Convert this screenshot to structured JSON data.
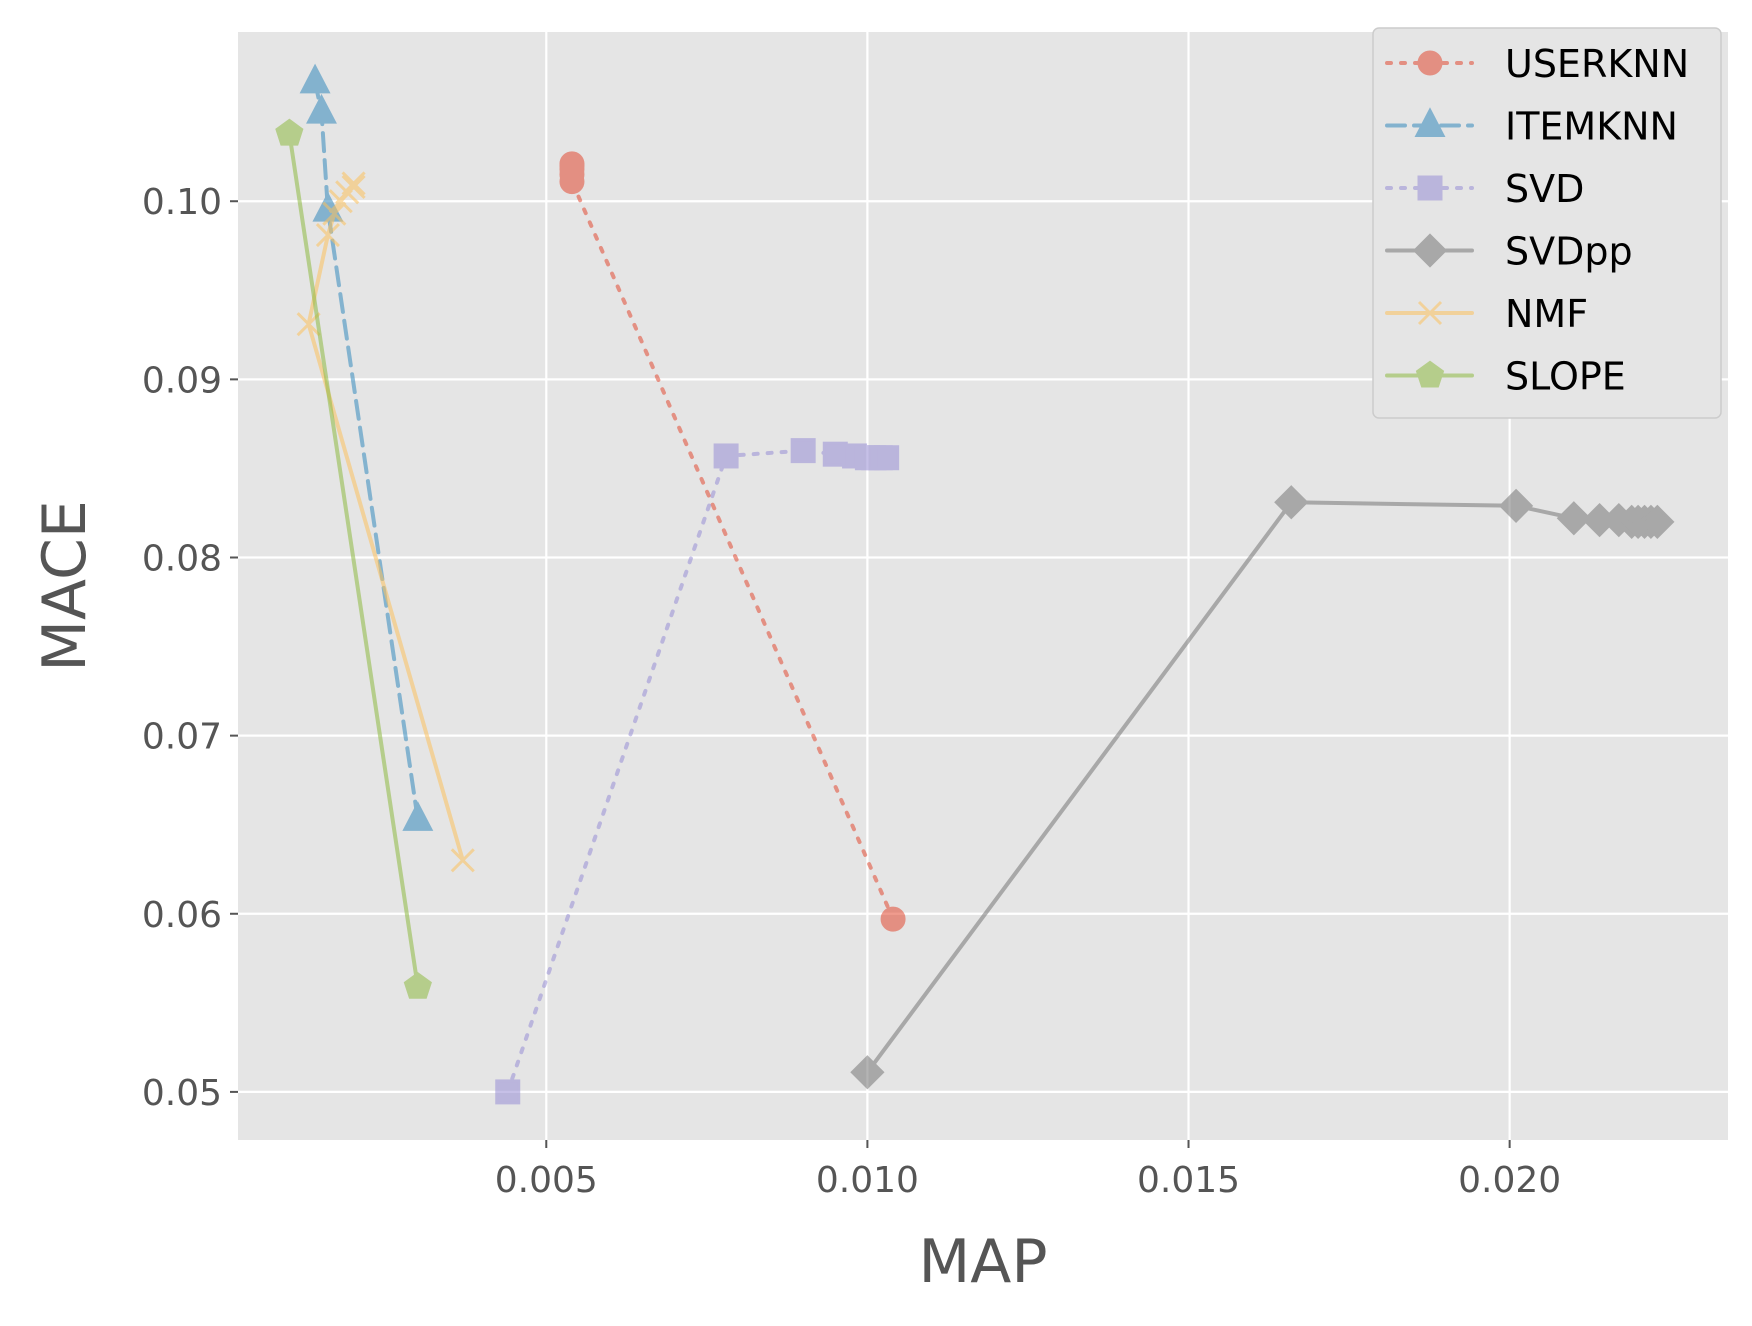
{
  "chart_data": {
    "type": "line",
    "title": "",
    "xlabel": "MAP",
    "ylabel": "MACE",
    "xlim": [
      0.0002,
      0.0234
    ],
    "ylim": [
      0.0473,
      0.1095
    ],
    "x_ticks": [
      {
        "value": 0.005,
        "label": "0.005"
      },
      {
        "value": 0.01,
        "label": "0.010"
      },
      {
        "value": 0.015,
        "label": "0.015"
      },
      {
        "value": 0.02,
        "label": "0.020"
      }
    ],
    "y_ticks": [
      {
        "value": 0.05,
        "label": "0.05"
      },
      {
        "value": 0.06,
        "label": "0.06"
      },
      {
        "value": 0.07,
        "label": "0.07"
      },
      {
        "value": 0.08,
        "label": "0.08"
      },
      {
        "value": 0.09,
        "label": "0.09"
      },
      {
        "value": 0.1,
        "label": "0.10"
      }
    ],
    "grid": true,
    "legend_position": "top-right",
    "series": [
      {
        "name": "USERKNN",
        "color": "#E24A33",
        "line_style": "dotted",
        "marker": "circle",
        "points": [
          {
            "x": 0.0104,
            "y": 0.0597
          },
          {
            "x": 0.0054,
            "y": 0.1011
          },
          {
            "x": 0.0054,
            "y": 0.1015
          },
          {
            "x": 0.0054,
            "y": 0.1018
          },
          {
            "x": 0.0054,
            "y": 0.102
          },
          {
            "x": 0.0054,
            "y": 0.1021
          }
        ]
      },
      {
        "name": "ITEMKNN",
        "color": "#348ABD",
        "line_style": "dashed",
        "marker": "triangle",
        "points": [
          {
            "x": 0.003,
            "y": 0.0653
          },
          {
            "x": 0.0016,
            "y": 0.0995
          },
          {
            "x": 0.0015,
            "y": 0.105
          },
          {
            "x": 0.0014,
            "y": 0.1067
          }
        ]
      },
      {
        "name": "SVD",
        "color": "#988ED5",
        "line_style": "dotted",
        "marker": "square",
        "points": [
          {
            "x": 0.0044,
            "y": 0.05
          },
          {
            "x": 0.0078,
            "y": 0.0857
          },
          {
            "x": 0.009,
            "y": 0.086
          },
          {
            "x": 0.0095,
            "y": 0.0858
          },
          {
            "x": 0.0098,
            "y": 0.0857
          },
          {
            "x": 0.01,
            "y": 0.0856
          },
          {
            "x": 0.0101,
            "y": 0.0856
          },
          {
            "x": 0.0102,
            "y": 0.0856
          },
          {
            "x": 0.0103,
            "y": 0.0856
          }
        ]
      },
      {
        "name": "SVDpp",
        "color": "#777777",
        "line_style": "solid",
        "marker": "diamond",
        "points": [
          {
            "x": 0.01,
            "y": 0.0511
          },
          {
            "x": 0.0166,
            "y": 0.0831
          },
          {
            "x": 0.0201,
            "y": 0.0829
          },
          {
            "x": 0.021,
            "y": 0.0822
          },
          {
            "x": 0.0214,
            "y": 0.0821
          },
          {
            "x": 0.0217,
            "y": 0.0821
          },
          {
            "x": 0.0219,
            "y": 0.082
          },
          {
            "x": 0.022,
            "y": 0.082
          },
          {
            "x": 0.0221,
            "y": 0.082
          },
          {
            "x": 0.0222,
            "y": 0.082
          },
          {
            "x": 0.0223,
            "y": 0.082
          }
        ]
      },
      {
        "name": "NMF",
        "color": "#FBC15E",
        "line_style": "solid",
        "marker": "x",
        "points": [
          {
            "x": 0.0037,
            "y": 0.063
          },
          {
            "x": 0.0013,
            "y": 0.0931
          },
          {
            "x": 0.0016,
            "y": 0.0981
          },
          {
            "x": 0.0017,
            "y": 0.0993
          },
          {
            "x": 0.0018,
            "y": 0.1
          },
          {
            "x": 0.0019,
            "y": 0.1005
          },
          {
            "x": 0.002,
            "y": 0.1008
          },
          {
            "x": 0.002,
            "y": 0.101
          }
        ]
      },
      {
        "name": "SLOPE",
        "color": "#8EBA42",
        "line_style": "solid",
        "marker": "pentagon",
        "points": [
          {
            "x": 0.003,
            "y": 0.0559
          },
          {
            "x": 0.001,
            "y": 0.1038
          }
        ]
      }
    ]
  }
}
